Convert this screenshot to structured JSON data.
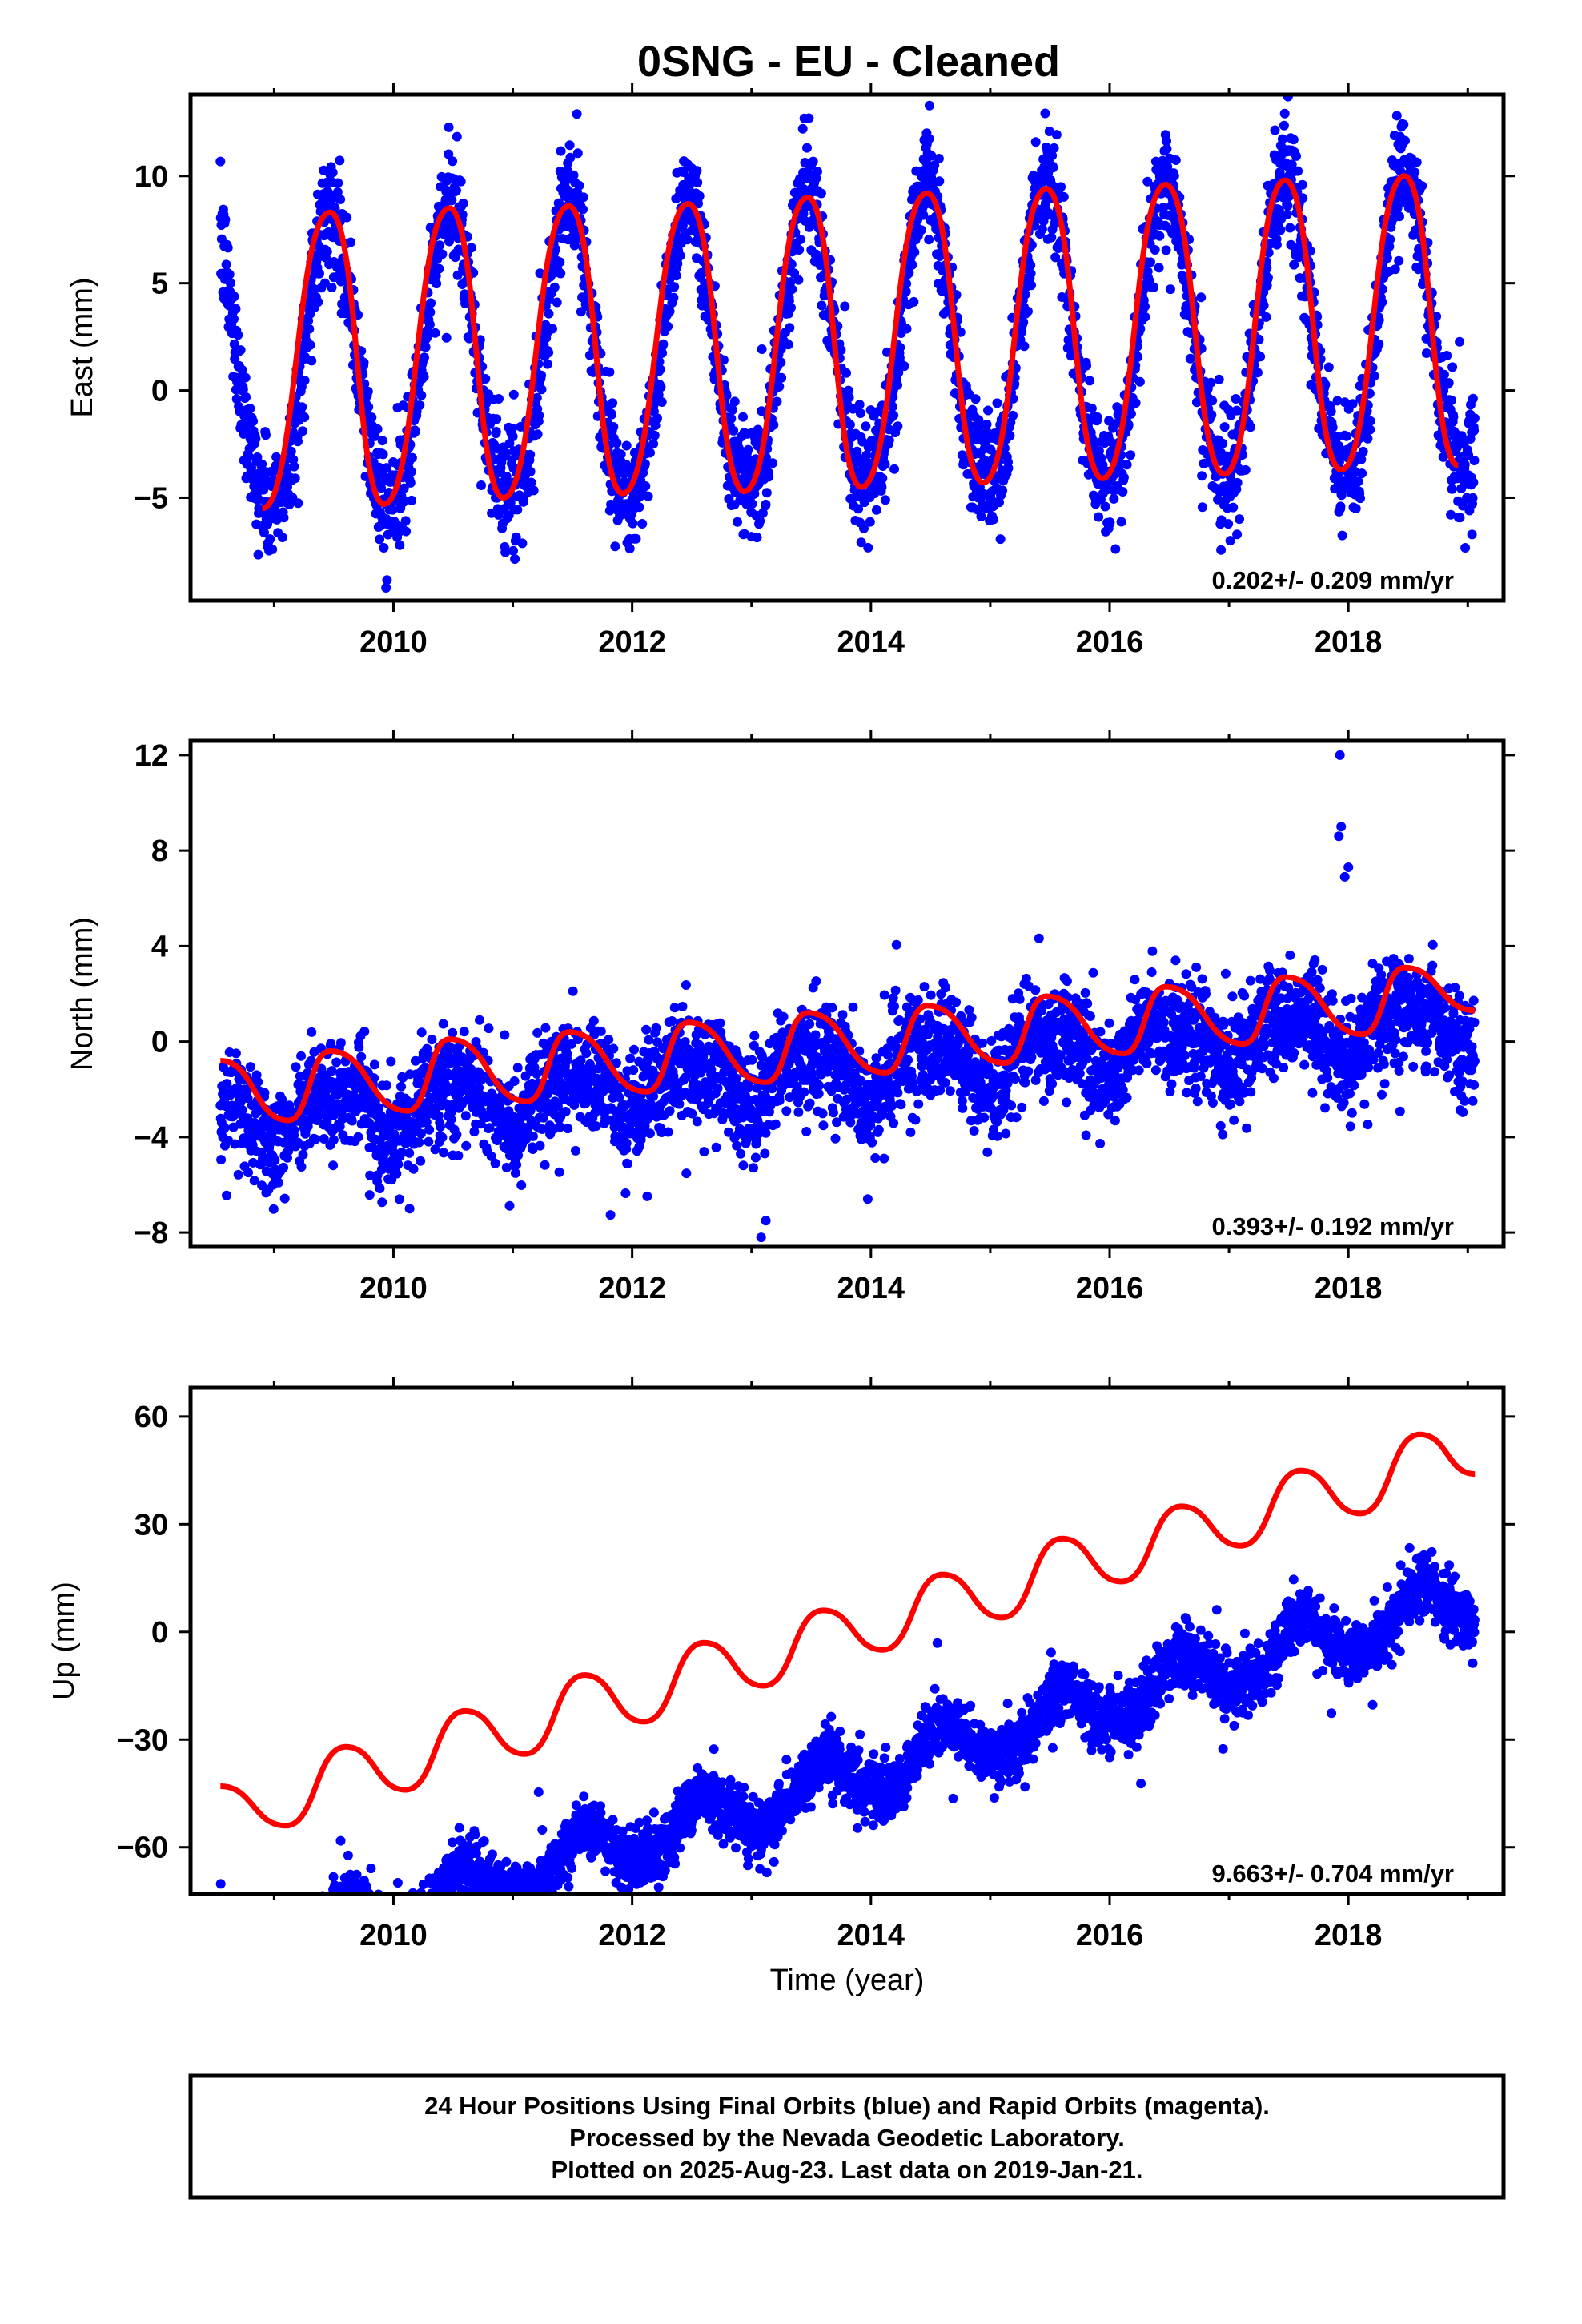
{
  "title": "0SNG  - EU - Cleaned",
  "colors": {
    "points": "#0000ff",
    "fit": "#ff0000",
    "frame": "#000000"
  },
  "xlabel": "Time (year)",
  "footer": {
    "line1": "24 Hour Positions Using Final Orbits (blue) and Rapid Orbits (magenta).",
    "line2": "Processed by the Nevada Geodetic Laboratory.",
    "line3": "Plotted on 2025-Aug-23. Last data on 2019-Jan-21."
  },
  "chart_data": [
    {
      "type": "scatter",
      "panel": "east",
      "ylabel": "East (mm)",
      "rate_label": "0.202+/- 0.209 mm/yr",
      "xlim": [
        2008.3,
        2019.3
      ],
      "ylim": [
        -9.8,
        13.8
      ],
      "x_ticks": [
        2010,
        2012,
        2014,
        2016,
        2018
      ],
      "y_ticks": [
        -5,
        0,
        5,
        10
      ],
      "data_range": [
        2008.55,
        2019.06
      ],
      "fit": {
        "offset": 1.9,
        "rate": 0.202,
        "annual_amp": 6.9,
        "annual_peak": 0.47,
        "semiannual_amp": 0.6,
        "semiannual_peak": 0.45
      },
      "scatter_sigma": 1.3,
      "series": [
        {
          "x": [
            2008.9,
            2009.47,
            2009.92,
            2010.47,
            2010.92,
            2011.47,
            2011.92,
            2012.47,
            2012.94,
            2013.47,
            2013.92,
            2014.47,
            2014.94,
            2015.47,
            2015.94,
            2016.47,
            2016.96,
            2017.47,
            2017.94,
            2018.47,
            2018.92
          ],
          "y": [
            -5.5,
            8.3,
            -5.3,
            8.5,
            -5.0,
            8.6,
            -4.8,
            8.7,
            -4.7,
            9.0,
            -4.5,
            9.2,
            -4.3,
            9.4,
            -4.1,
            9.6,
            -3.9,
            9.8,
            -3.7,
            10.0,
            -3.5
          ]
        }
      ]
    },
    {
      "type": "scatter",
      "panel": "north",
      "ylabel": "North (mm)",
      "rate_label": "0.393+/- 0.192 mm/yr",
      "xlim": [
        2008.3,
        2019.3
      ],
      "ylim": [
        -8.6,
        12.6
      ],
      "x_ticks": [
        2010,
        2012,
        2014,
        2016,
        2018
      ],
      "y_ticks": [
        -8,
        -4,
        0,
        4,
        8,
        12
      ],
      "data_range": [
        2008.55,
        2019.06
      ],
      "fit": {
        "offset": -1.2,
        "rate": 0.393,
        "annual_amp": 0.9,
        "annual_peak": 0.49,
        "semiannual_amp": 0.45,
        "semiannual_peak": 0.25
      },
      "scatter_sigma": 1.1,
      "outliers": {
        "x": [
          2017.93,
          2017.94,
          2017.92,
          2018.0,
          2017.97,
          2013.08,
          2013.12,
          2010.05
        ],
        "y": [
          12.0,
          9.0,
          8.6,
          7.3,
          6.9,
          -8.2,
          -7.5,
          -6.6
        ]
      },
      "series": [
        {
          "x": [
            2008.55,
            2009.12,
            2009.47,
            2010.12,
            2010.47,
            2011.12,
            2011.47,
            2012.12,
            2012.47,
            2013.12,
            2013.47,
            2014.12,
            2014.47,
            2015.12,
            2015.47,
            2016.12,
            2016.47,
            2017.12,
            2017.47,
            2018.12,
            2018.47,
            2019.06
          ],
          "y": [
            -0.8,
            -3.3,
            -0.4,
            -2.9,
            0.1,
            -2.5,
            0.4,
            -2.1,
            0.8,
            -1.7,
            1.2,
            -1.3,
            1.5,
            -0.9,
            1.9,
            -0.5,
            2.3,
            -0.1,
            2.7,
            0.3,
            3.1,
            1.3
          ]
        }
      ]
    },
    {
      "type": "scatter",
      "panel": "up",
      "ylabel": "Up (mm)",
      "rate_label": "9.663+/- 0.704 mm/yr",
      "xlim": [
        2008.3,
        2019.3
      ],
      "ylim": [
        -73,
        68
      ],
      "x_ticks": [
        2010,
        2012,
        2014,
        2016,
        2018
      ],
      "y_ticks": [
        -60,
        -30,
        0,
        30,
        60
      ],
      "data_range": [
        2008.55,
        2019.06
      ],
      "fit": {
        "offset": -41.0,
        "rate": 9.663,
        "annual_amp": 6.6,
        "annual_peak": 0.6,
        "semiannual_amp": 0.8,
        "semiannual_peak": 0.6
      },
      "scatter_sigma": 4.2,
      "series": [
        {
          "x": [
            2008.55,
            2009.1,
            2009.6,
            2010.1,
            2010.6,
            2011.1,
            2011.6,
            2012.1,
            2012.6,
            2013.1,
            2013.6,
            2014.1,
            2014.6,
            2015.1,
            2015.6,
            2016.1,
            2016.6,
            2017.1,
            2017.6,
            2018.1,
            2018.6,
            2019.06
          ],
          "y": [
            -43,
            -54,
            -32,
            -44,
            -22,
            -34,
            -12,
            -25,
            -3,
            -15,
            6,
            -5,
            16,
            4,
            26,
            14,
            35,
            24,
            45,
            33,
            55,
            44
          ]
        }
      ]
    }
  ]
}
